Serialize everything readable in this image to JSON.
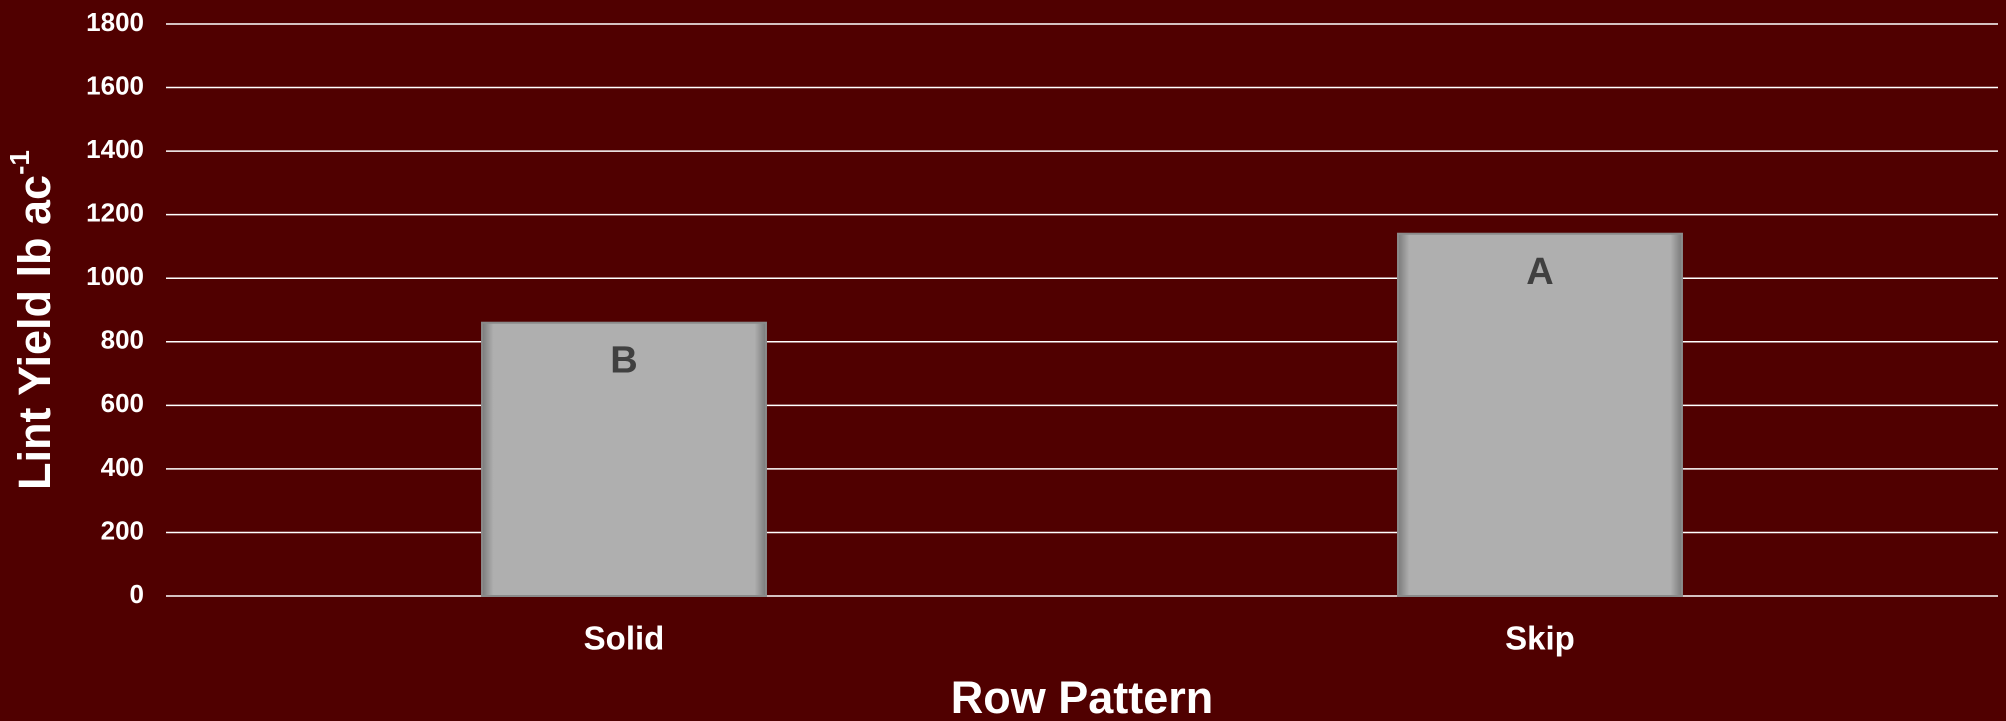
{
  "chart_data": {
    "type": "bar",
    "x_label": "Row Pattern",
    "y_label": {
      "text": "Lint Yield lb ac",
      "superscript": "-1"
    },
    "categories": [
      "Solid",
      "Skip"
    ],
    "values": [
      860,
      1140
    ],
    "annotations": [
      "B",
      "A"
    ],
    "color": "#afafaf",
    "ylim": [
      0,
      1800
    ],
    "yticks": [
      0,
      200,
      400,
      600,
      800,
      1000,
      1200,
      1400,
      1600,
      1800
    ],
    "grid": true
  }
}
